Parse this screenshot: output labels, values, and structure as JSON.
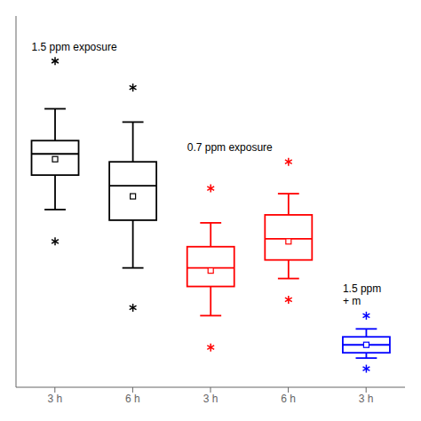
{
  "chart_data": {
    "type": "box",
    "categories": [
      "3 h",
      "6 h",
      "3 h",
      "6 h",
      "3 h"
    ],
    "colors": [
      "black",
      "black",
      "red",
      "red",
      "blue"
    ],
    "boxes": [
      {
        "q1": 75,
        "median": 83,
        "q3": 88,
        "mean": 81,
        "whisker_low": 62,
        "whisker_high": 100,
        "flier_low": 50,
        "flier_high": 118
      },
      {
        "q1": 58,
        "median": 71,
        "q3": 80,
        "mean": 67,
        "whisker_low": 40,
        "whisker_high": 95,
        "flier_low": 25,
        "flier_high": 108
      },
      {
        "q1": 33,
        "median": 40,
        "q3": 48,
        "mean": 39,
        "whisker_low": 22,
        "whisker_high": 57,
        "flier_low": 10,
        "flier_high": 70
      },
      {
        "q1": 43,
        "median": 51,
        "q3": 60,
        "mean": 50,
        "whisker_low": 36,
        "whisker_high": 68,
        "flier_low": 28,
        "flier_high": 80
      },
      {
        "q1": 8,
        "median": 11,
        "q3": 14,
        "mean": 11,
        "whisker_low": 6,
        "whisker_high": 17,
        "flier_low": 2,
        "flier_high": 22
      }
    ],
    "annotations": [
      "1.5 ppm exposure",
      "0.7 ppm exposure",
      "1.5 ppm\n+ m"
    ],
    "ylim": [
      -5,
      135
    ],
    "tick_labels": "x",
    "grid": false
  }
}
